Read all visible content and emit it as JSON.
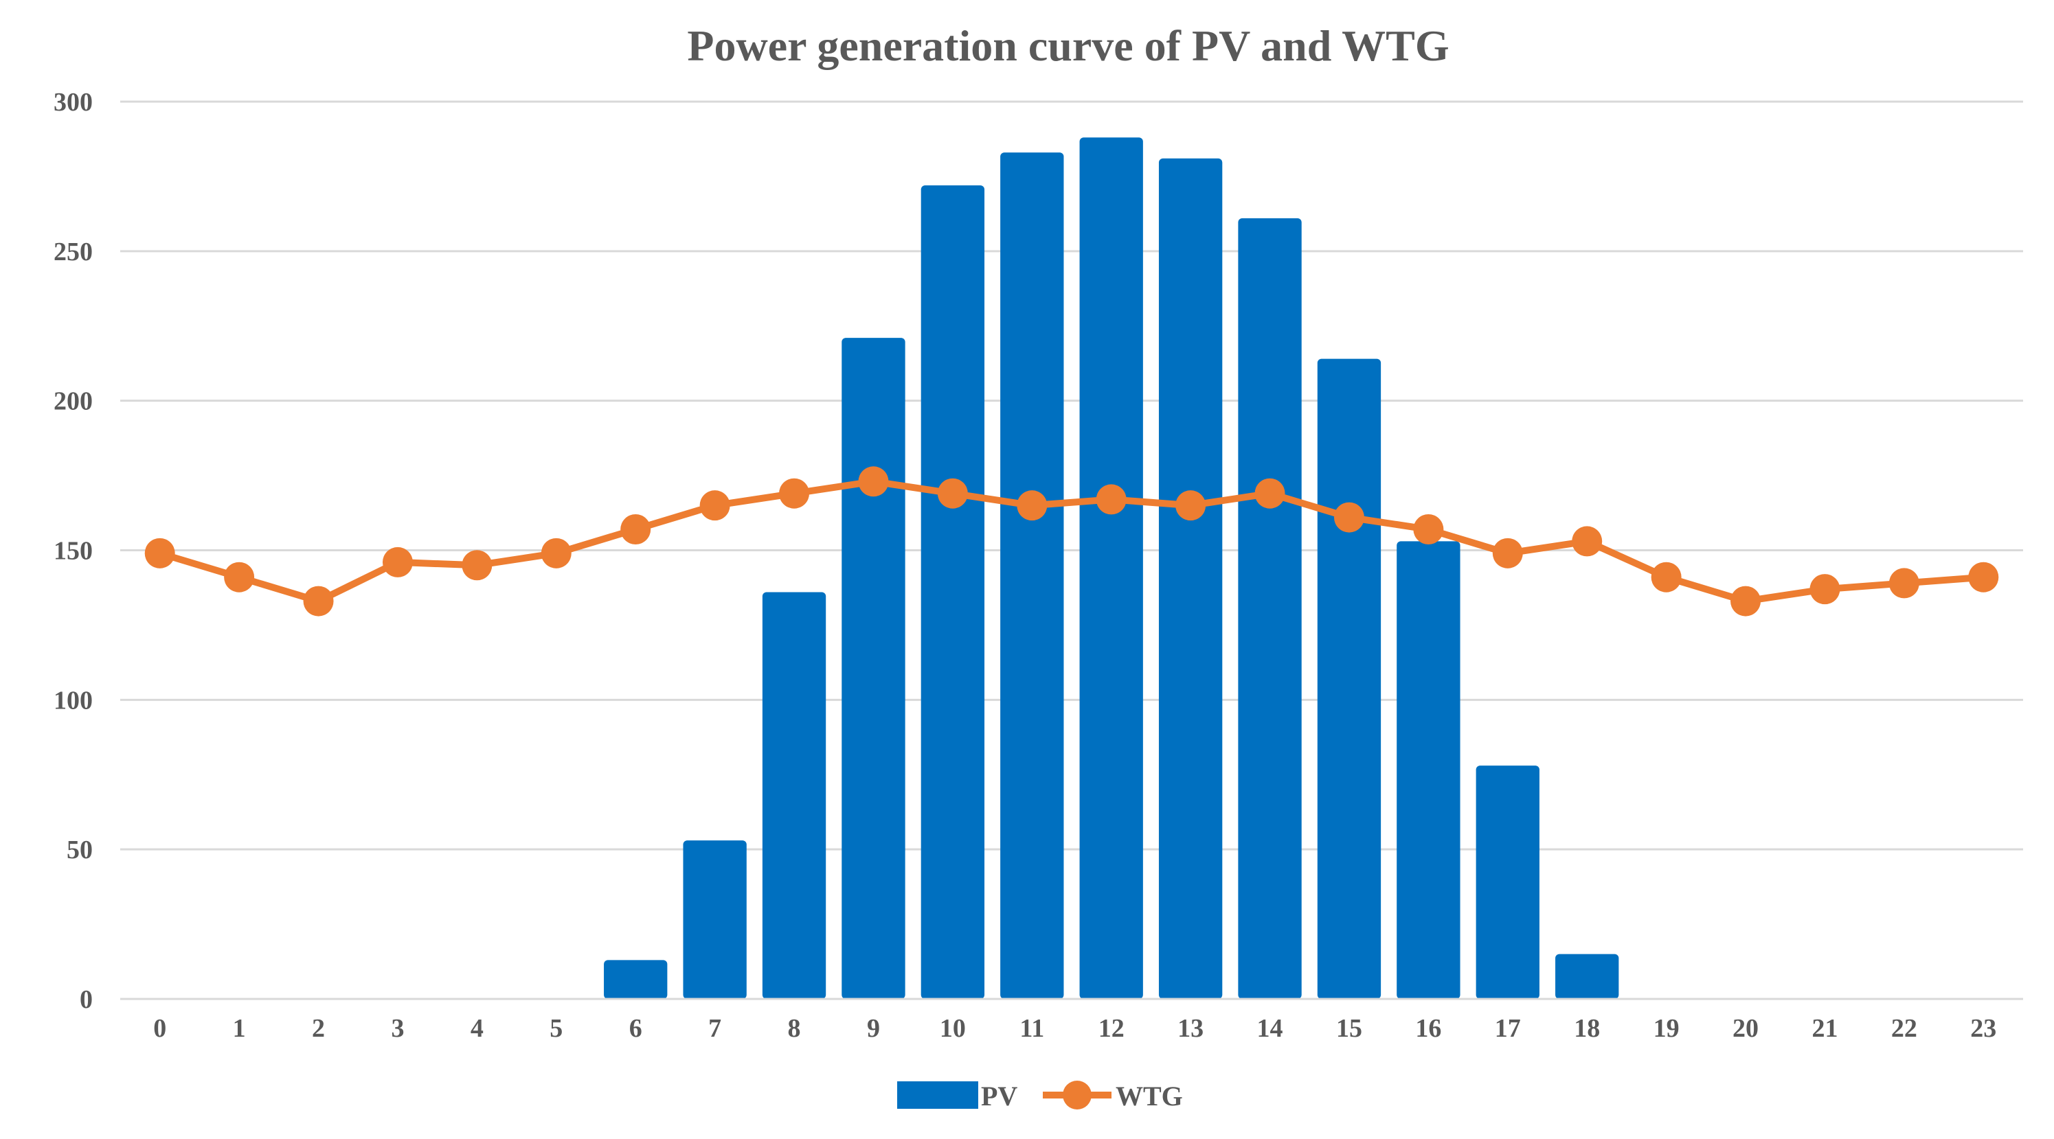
{
  "chart_data": {
    "type": "bar",
    "title": "Power generation curve of PV and WTG",
    "xlabel": "",
    "ylabel": "",
    "categories": [
      "0",
      "1",
      "2",
      "3",
      "4",
      "5",
      "6",
      "7",
      "8",
      "9",
      "10",
      "11",
      "12",
      "13",
      "14",
      "15",
      "16",
      "17",
      "18",
      "19",
      "20",
      "21",
      "22",
      "23"
    ],
    "ylim": [
      0,
      300
    ],
    "yticks": [
      0,
      50,
      100,
      150,
      200,
      250,
      300
    ],
    "grid": true,
    "legend_position": "bottom",
    "series": [
      {
        "name": "PV",
        "kind": "bar",
        "color": "#0070C0",
        "values": [
          0,
          0,
          0,
          0,
          0,
          0,
          13,
          53,
          136,
          221,
          272,
          283,
          288,
          281,
          261,
          214,
          153,
          78,
          15,
          0,
          0,
          0,
          0,
          0
        ]
      },
      {
        "name": "WTG",
        "kind": "line",
        "color": "#ED7D31",
        "values": [
          149,
          141,
          133,
          146,
          145,
          149,
          157,
          165,
          169,
          173,
          169,
          165,
          167,
          165,
          169,
          161,
          157,
          149,
          153,
          141,
          133,
          137,
          139,
          141
        ]
      }
    ]
  }
}
